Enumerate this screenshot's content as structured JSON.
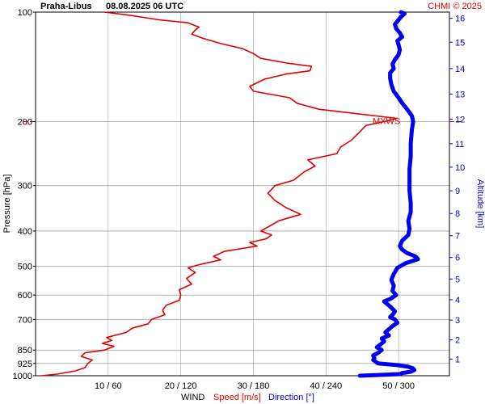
{
  "header": {
    "station": "Praha-Libus",
    "datetime": "08.08.2025 06 UTC",
    "copyright": "CHMI © 2025"
  },
  "colors": {
    "speed": "#e00000",
    "direction": "#0000ee",
    "grid": "#a0a0a0",
    "frame": "#000000",
    "altitude_axis": "#0000cc",
    "mxws": "#e00000"
  },
  "chart_data": {
    "type": "line",
    "title": "Praha-Libus   08.08.2025 06 UTC",
    "ylabel": "Pressure [hPa]",
    "y2label": "Altitude [km]",
    "xlabel": {
      "prefix": "WIND",
      "speed": "Speed [m/s]",
      "direction": "Direction [°]"
    },
    "y_scale": "log",
    "ylim": [
      1000,
      100
    ],
    "pressure_ticks": [
      100,
      200,
      300,
      400,
      500,
      600,
      700,
      850,
      925,
      1000
    ],
    "altitude_ticks": [
      {
        "km": 1,
        "hPa": 900
      },
      {
        "km": 2,
        "hPa": 797
      },
      {
        "km": 3,
        "hPa": 703
      },
      {
        "km": 4,
        "hPa": 618
      },
      {
        "km": 5,
        "hPa": 542
      },
      {
        "km": 6,
        "hPa": 473
      },
      {
        "km": 7,
        "hPa": 412
      },
      {
        "km": 8,
        "hPa": 358
      },
      {
        "km": 9,
        "hPa": 310
      },
      {
        "km": 10,
        "hPa": 267
      },
      {
        "km": 11,
        "hPa": 230
      },
      {
        "km": 12,
        "hPa": 197
      },
      {
        "km": 13,
        "hPa": 168
      },
      {
        "km": 14,
        "hPa": 143
      },
      {
        "km": 15,
        "hPa": 121
      },
      {
        "km": 16,
        "hPa": 104
      }
    ],
    "x_ticks": [
      {
        "speed": 10,
        "dir": 60,
        "label": "10 / 60"
      },
      {
        "speed": 20,
        "dir": 120,
        "label": "20 / 120"
      },
      {
        "speed": 30,
        "dir": 180,
        "label": "30 / 180"
      },
      {
        "speed": 40,
        "dir": 240,
        "label": "40 / 240"
      },
      {
        "speed": 50,
        "dir": 300,
        "label": "50 / 300"
      }
    ],
    "xlim_speed": [
      0,
      57
    ],
    "mxws": {
      "label": "MXWS",
      "pressure": 200
    },
    "series": [
      {
        "name": "Speed [m/s]",
        "unit": "m/s",
        "points": [
          [
            1000,
            0.8
          ],
          [
            990,
            3.0
          ],
          [
            970,
            5.5
          ],
          [
            950,
            6.8
          ],
          [
            925,
            7.2
          ],
          [
            905,
            7.8
          ],
          [
            885,
            6.3
          ],
          [
            865,
            6.8
          ],
          [
            850,
            9.5
          ],
          [
            830,
            10.8
          ],
          [
            815,
            9.2
          ],
          [
            800,
            10.5
          ],
          [
            785,
            9.8
          ],
          [
            760,
            12.5
          ],
          [
            740,
            13.3
          ],
          [
            720,
            15.5
          ],
          [
            700,
            16.0
          ],
          [
            680,
            17.8
          ],
          [
            660,
            17.5
          ],
          [
            640,
            18.0
          ],
          [
            620,
            19.8
          ],
          [
            600,
            20.0
          ],
          [
            580,
            19.8
          ],
          [
            560,
            21.5
          ],
          [
            540,
            20.8
          ],
          [
            520,
            22.0
          ],
          [
            505,
            21.0
          ],
          [
            495,
            22.5
          ],
          [
            480,
            25.5
          ],
          [
            470,
            24.5
          ],
          [
            455,
            26.0
          ],
          [
            440,
            30.5
          ],
          [
            430,
            29.5
          ],
          [
            420,
            31.8
          ],
          [
            410,
            32.5
          ],
          [
            400,
            31.0
          ],
          [
            385,
            32.5
          ],
          [
            375,
            33.5
          ],
          [
            360,
            36.5
          ],
          [
            345,
            34.5
          ],
          [
            330,
            33.0
          ],
          [
            315,
            32.0
          ],
          [
            300,
            33.0
          ],
          [
            290,
            35.5
          ],
          [
            275,
            37.0
          ],
          [
            265,
            38.5
          ],
          [
            255,
            37.5
          ],
          [
            245,
            41.5
          ],
          [
            235,
            42.0
          ],
          [
            225,
            43.5
          ],
          [
            215,
            44.5
          ],
          [
            205,
            45.5
          ],
          [
            200,
            48.0
          ],
          [
            196,
            49.8
          ],
          [
            190,
            44.0
          ],
          [
            185,
            39.0
          ],
          [
            178,
            36.0
          ],
          [
            172,
            35.0
          ],
          [
            165,
            30.0
          ],
          [
            160,
            29.5
          ],
          [
            153,
            31.5
          ],
          [
            148,
            34.5
          ],
          [
            145,
            37.8
          ],
          [
            141,
            38.0
          ],
          [
            138,
            34.5
          ],
          [
            134,
            31.0
          ],
          [
            130,
            30.0
          ],
          [
            126,
            28.5
          ],
          [
            122,
            25.5
          ],
          [
            118,
            23.0
          ],
          [
            115,
            21.5
          ],
          [
            112,
            22.0
          ],
          [
            110,
            22.5
          ],
          [
            107,
            21.0
          ],
          [
            105,
            17.0
          ],
          [
            102,
            13.0
          ],
          [
            100,
            9.5
          ]
        ]
      },
      {
        "name": "Direction [°]",
        "unit": "deg",
        "points": [
          [
            1000,
            268
          ],
          [
            995,
            285
          ],
          [
            990,
            301
          ],
          [
            983,
            303
          ],
          [
            975,
            310
          ],
          [
            965,
            313
          ],
          [
            955,
            312
          ],
          [
            945,
            308
          ],
          [
            935,
            299
          ],
          [
            925,
            283
          ],
          [
            915,
            281
          ],
          [
            905,
            279
          ],
          [
            895,
            280
          ],
          [
            880,
            279
          ],
          [
            865,
            283
          ],
          [
            850,
            286
          ],
          [
            835,
            282
          ],
          [
            820,
            285
          ],
          [
            805,
            288
          ],
          [
            790,
            286
          ],
          [
            775,
            292
          ],
          [
            760,
            289
          ],
          [
            745,
            292
          ],
          [
            730,
            295
          ],
          [
            715,
            299
          ],
          [
            700,
            297
          ],
          [
            690,
            293
          ],
          [
            680,
            295
          ],
          [
            665,
            297
          ],
          [
            645,
            293
          ],
          [
            625,
            288
          ],
          [
            615,
            293
          ],
          [
            600,
            298
          ],
          [
            585,
            295
          ],
          [
            565,
            296
          ],
          [
            545,
            294
          ],
          [
            525,
            296
          ],
          [
            505,
            299
          ],
          [
            490,
            306
          ],
          [
            478,
            316
          ],
          [
            470,
            314
          ],
          [
            460,
            307
          ],
          [
            450,
            303
          ],
          [
            440,
            301
          ],
          [
            425,
            303
          ],
          [
            410,
            308
          ],
          [
            395,
            309
          ],
          [
            375,
            308
          ],
          [
            355,
            310
          ],
          [
            335,
            310
          ],
          [
            310,
            309
          ],
          [
            290,
            309
          ],
          [
            270,
            309
          ],
          [
            250,
            310
          ],
          [
            230,
            310
          ],
          [
            210,
            311
          ],
          [
            200,
            312
          ],
          [
            193,
            311
          ],
          [
            185,
            307
          ],
          [
            178,
            303
          ],
          [
            172,
            300
          ],
          [
            165,
            296
          ],
          [
            158,
            294
          ],
          [
            152,
            293
          ],
          [
            147,
            293
          ],
          [
            143,
            296
          ],
          [
            139,
            295
          ],
          [
            135,
            297
          ],
          [
            131,
            300
          ],
          [
            127,
            301
          ],
          [
            123,
            300
          ],
          [
            120,
            299
          ],
          [
            117,
            303
          ],
          [
            114,
            301
          ],
          [
            111,
            298
          ],
          [
            108,
            297
          ],
          [
            105,
            300
          ],
          [
            103,
            302
          ],
          [
            101,
            305
          ],
          [
            100,
            302
          ]
        ]
      }
    ]
  }
}
